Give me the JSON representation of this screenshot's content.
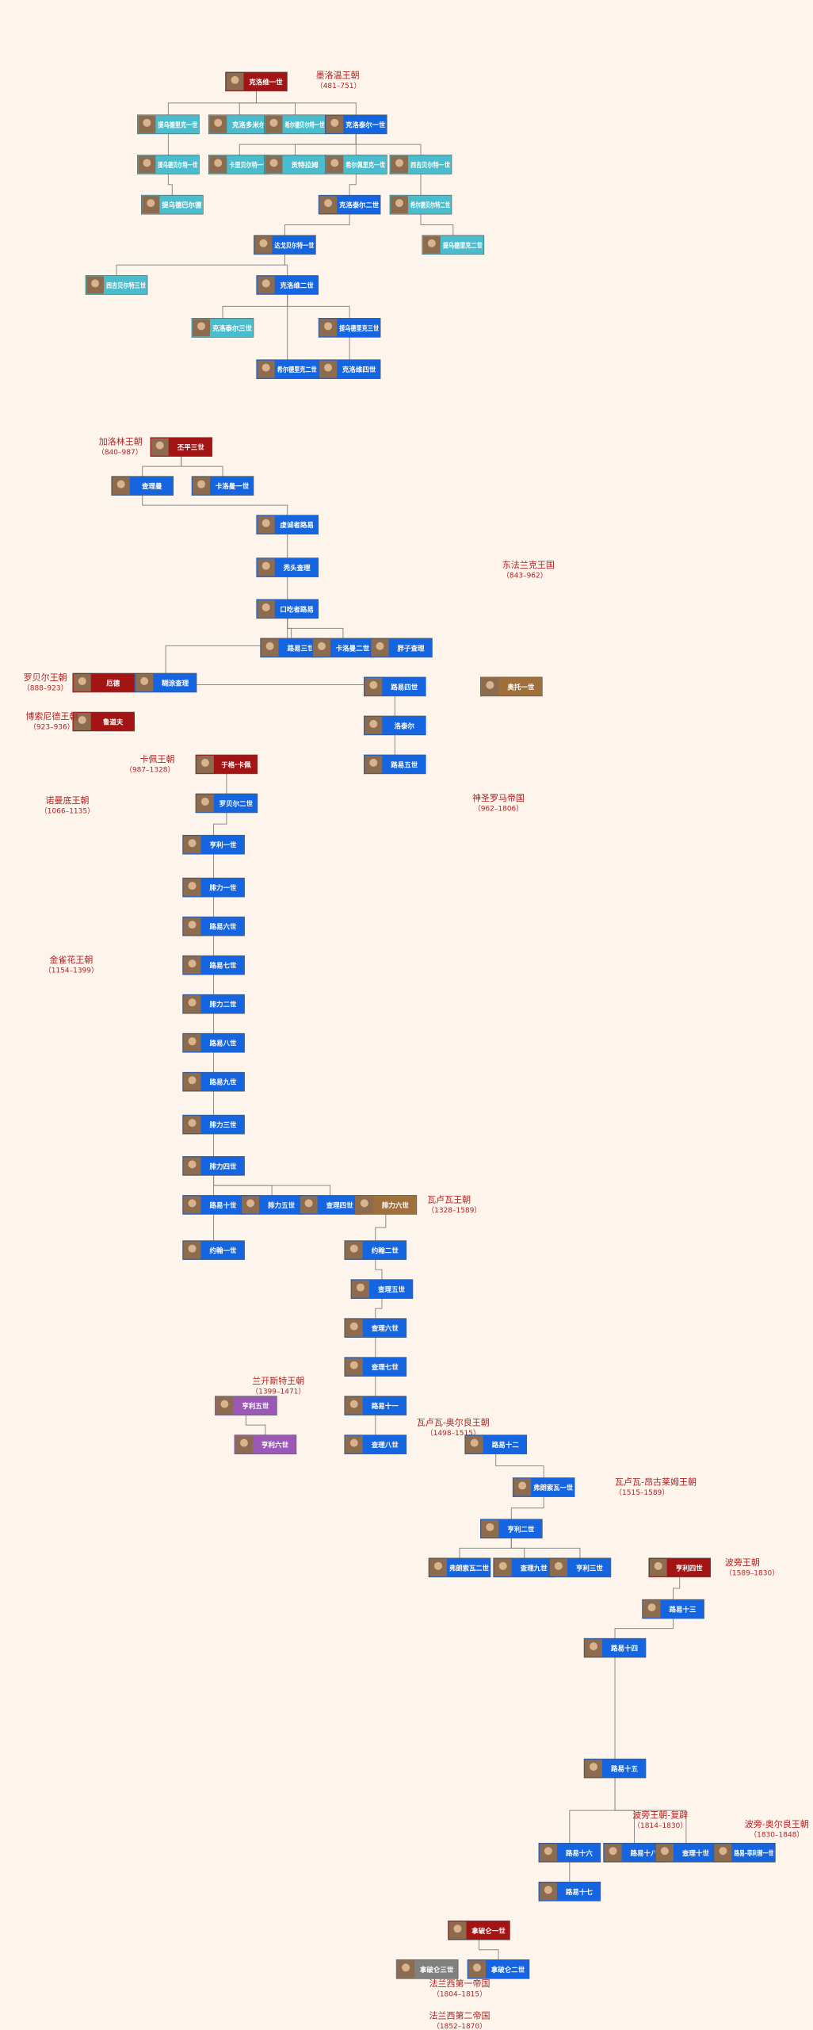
{
  "nodes": [
    {
      "label": "克洛维一世"
    },
    {
      "label": "提乌德里克一世"
    },
    {
      "label": "克洛多米尔"
    },
    {
      "label": "希尔德贝尔特一世"
    },
    {
      "label": "克洛泰尔一世"
    },
    {
      "label": "提乌德贝尔特一世"
    },
    {
      "label": "卡里贝尔特一世"
    },
    {
      "label": "贡特拉姆"
    },
    {
      "label": "希尔佩里克一世"
    },
    {
      "label": "西吉贝尔特一世"
    },
    {
      "label": "提乌德巴尔德"
    },
    {
      "label": "克洛泰尔二世"
    },
    {
      "label": "希尔德贝尔特二世"
    },
    {
      "label": "达戈贝尔特一世"
    },
    {
      "label": "提乌德里克二世"
    },
    {
      "label": "西吉贝尔特三世"
    },
    {
      "label": "克洛维二世"
    },
    {
      "label": "克洛泰尔三世"
    },
    {
      "label": "提乌德里克三世"
    },
    {
      "label": "希尔德里克二世"
    },
    {
      "label": "克洛维四世"
    },
    {
      "label": "丕平三世"
    },
    {
      "label": "查理曼"
    },
    {
      "label": "卡洛曼一世"
    },
    {
      "label": "虔诚者路易"
    },
    {
      "label": "秃头查理"
    },
    {
      "label": "口吃者路易"
    },
    {
      "label": "路易三世"
    },
    {
      "label": "卡洛曼二世"
    },
    {
      "label": "胖子查理"
    },
    {
      "label": "厄德"
    },
    {
      "label": "糊涂查理"
    },
    {
      "label": "鲁道夫"
    },
    {
      "label": "路易四世"
    },
    {
      "label": "洛泰尔"
    },
    {
      "label": "路易五世"
    },
    {
      "label": "于格·卡佩"
    },
    {
      "label": "罗贝尔二世"
    },
    {
      "label": "亨利一世"
    },
    {
      "label": "腓力一世"
    },
    {
      "label": "路易六世"
    },
    {
      "label": "路易七世"
    },
    {
      "label": "腓力二世"
    },
    {
      "label": "路易八世"
    },
    {
      "label": "路易九世"
    },
    {
      "label": "腓力三世"
    },
    {
      "label": "腓力四世"
    },
    {
      "label": "路易十世"
    },
    {
      "label": "约翰一世"
    },
    {
      "label": "腓力五世"
    },
    {
      "label": "查理四世"
    },
    {
      "label": "腓力六世"
    },
    {
      "label": "约翰二世"
    },
    {
      "label": "查理五世"
    },
    {
      "label": "查理六世"
    },
    {
      "label": "查理七世"
    },
    {
      "label": "路易十一"
    },
    {
      "label": "查理八世"
    },
    {
      "label": "路易十二"
    },
    {
      "label": "弗朗索瓦一世"
    },
    {
      "label": "亨利二世"
    },
    {
      "label": "弗朗索瓦二世"
    },
    {
      "label": "查理九世"
    },
    {
      "label": "亨利三世"
    },
    {
      "label": "亨利四世"
    },
    {
      "label": "路易十三"
    },
    {
      "label": "路易十四"
    },
    {
      "label": "路易十五"
    },
    {
      "label": "路易十六"
    },
    {
      "label": "路易十七"
    },
    {
      "label": "路易十八"
    },
    {
      "label": "查理十世"
    },
    {
      "label": "路易-菲利普一世"
    },
    {
      "label": "拿破仑一世"
    },
    {
      "label": "拿破仑二世"
    },
    {
      "label": "拿破仑三世"
    },
    {
      "label": "亨利六世"
    },
    {
      "label": "亨利五世"
    },
    {
      "label": "奥托一世"
    }
  ],
  "dynasties": [
    {
      "name": "墨洛温王朝",
      "years": "（481–751）"
    },
    {
      "name": "加洛林王朝",
      "years": "（840–987）"
    },
    {
      "name": "东法兰克王国",
      "years": "（843–962）"
    },
    {
      "name": "罗贝尔王朝",
      "years": "（888–923）"
    },
    {
      "name": "博索尼德王朝",
      "years": "（923–936）"
    },
    {
      "name": "卡佩王朝",
      "years": "（987–1328）"
    },
    {
      "name": "诺曼底王朝",
      "years": "（1066–1135）"
    },
    {
      "name": "神圣罗马帝国",
      "years": "（962–1806）"
    },
    {
      "name": "金雀花王朝",
      "years": "（1154–1399）"
    },
    {
      "name": "瓦卢瓦王朝",
      "years": "（1328–1589）"
    },
    {
      "name": "兰开斯特王朝",
      "years": "（1399–1471）"
    },
    {
      "name": "瓦卢瓦-奥尔良王朝",
      "years": "（1498–1515）"
    },
    {
      "name": "瓦卢瓦-昂古莱姆王朝",
      "years": "（1515–1589）"
    },
    {
      "name": "波旁王朝",
      "years": "（1589–1830）"
    },
    {
      "name": "波旁王朝-复辟",
      "years": "（1814–1830）"
    },
    {
      "name": "波旁-奥尔良王朝",
      "years": "（1830–1848）"
    },
    {
      "name": "法兰西第一帝国",
      "years": "（1804–1815）"
    },
    {
      "name": "法兰西第二帝国",
      "years": "（1852–1870）"
    }
  ]
}
